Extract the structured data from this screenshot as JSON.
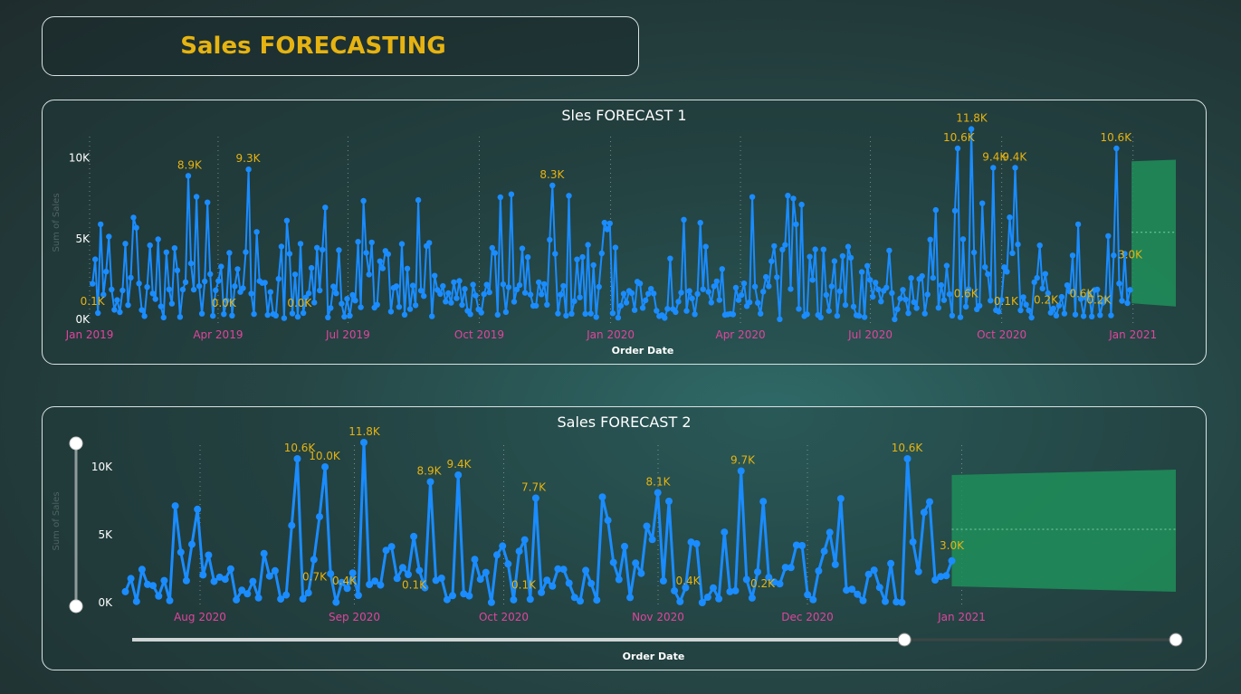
{
  "dashboard": {
    "title": "Sales FORECASTING"
  },
  "colors": {
    "line": "#1a8cff",
    "forecast": "#1f8f5a",
    "label": "#e6b311",
    "tick": "#e0459c"
  },
  "chart_data": [
    {
      "type": "line",
      "title": "Sles FORECAST 1",
      "xlabel": "Order Date",
      "ylabel": "Sum of Sales",
      "x_ticks": [
        "Jan 2019",
        "Apr 2019",
        "Jul 2019",
        "Oct 2019",
        "Jan 2020",
        "Apr 2020",
        "Jul 2020",
        "Oct 2020",
        "Jan 2021"
      ],
      "y_ticks": [
        "0K",
        "5K",
        "10K"
      ],
      "ylim": [
        0,
        12000
      ],
      "x_range": [
        "2019-01-01",
        "2021-01-31"
      ],
      "series": [
        {
          "seed": 7,
          "start": "2019-01-03",
          "end": "2020-12-30",
          "count": 380
        }
      ],
      "peaks": [
        {
          "x": "2019-03-12",
          "y": 8900
        },
        {
          "x": "2019-04-22",
          "y": 9300
        },
        {
          "x": "2019-11-21",
          "y": 8300
        },
        {
          "x": "2020-09-01",
          "y": 10600
        },
        {
          "x": "2020-09-10",
          "y": 11800
        },
        {
          "x": "2020-09-26",
          "y": 9400
        },
        {
          "x": "2020-10-10",
          "y": 9400
        },
        {
          "x": "2020-12-20",
          "y": 10600
        }
      ],
      "data_labels": [
        {
          "x": "2019-01-03",
          "y": 100,
          "text": "0.1K"
        },
        {
          "x": "2019-03-12",
          "y": 8900,
          "text": "8.9K"
        },
        {
          "x": "2019-04-22",
          "y": 9300,
          "text": "9.3K"
        },
        {
          "x": "2019-04-05",
          "y": 0,
          "text": "0.0K"
        },
        {
          "x": "2019-05-28",
          "y": 0,
          "text": "0.0K"
        },
        {
          "x": "2019-11-21",
          "y": 8300,
          "text": "8.3K"
        },
        {
          "x": "2020-09-01",
          "y": 10600,
          "text": "10.6K"
        },
        {
          "x": "2020-09-10",
          "y": 11800,
          "text": "11.8K"
        },
        {
          "x": "2020-09-26",
          "y": 9400,
          "text": "9.4K"
        },
        {
          "x": "2020-10-10",
          "y": 9400,
          "text": "9.4K"
        },
        {
          "x": "2020-09-06",
          "y": 600,
          "text": "0.6K"
        },
        {
          "x": "2020-10-04",
          "y": 100,
          "text": "0.1K"
        },
        {
          "x": "2020-11-01",
          "y": 200,
          "text": "0.2K"
        },
        {
          "x": "2020-11-26",
          "y": 600,
          "text": "0.6K"
        },
        {
          "x": "2020-12-08",
          "y": 200,
          "text": "0.2K"
        },
        {
          "x": "2020-12-20",
          "y": 10600,
          "text": "10.6K"
        },
        {
          "x": "2020-12-30",
          "y": 3000,
          "text": "3.0K"
        }
      ],
      "forecast": {
        "start": "2020-12-31",
        "end": "2021-01-31",
        "upper": [
          9800,
          9900
        ],
        "lower": [
          1000,
          800
        ],
        "center": [
          5400,
          5400
        ]
      }
    },
    {
      "type": "line",
      "title": "Sales FORECAST 2",
      "xlabel": "Order Date",
      "ylabel": "Sum of Sales",
      "x_ticks": [
        "Aug 2020",
        "Sep 2020",
        "Oct 2020",
        "Nov 2020",
        "Dec 2020",
        "Jan 2021"
      ],
      "y_ticks": [
        "0K",
        "5K",
        "10K"
      ],
      "ylim": [
        0,
        12000
      ],
      "x_range": [
        "2020-07-16",
        "2021-02-13"
      ],
      "series": [
        {
          "seed": 11,
          "start": "2020-07-17",
          "end": "2020-12-30",
          "count": 150
        }
      ],
      "peaks": [
        {
          "x": "2020-08-21",
          "y": 10600
        },
        {
          "x": "2020-08-26",
          "y": 10000
        },
        {
          "x": "2020-09-03",
          "y": 11800
        },
        {
          "x": "2020-09-16",
          "y": 8900
        },
        {
          "x": "2020-09-22",
          "y": 9400
        },
        {
          "x": "2020-10-07",
          "y": 7700
        },
        {
          "x": "2020-11-01",
          "y": 8100
        },
        {
          "x": "2020-11-18",
          "y": 9700
        },
        {
          "x": "2020-12-21",
          "y": 10600
        }
      ],
      "data_labels": [
        {
          "x": "2020-08-21",
          "y": 10600,
          "text": "10.6K"
        },
        {
          "x": "2020-08-26",
          "y": 10000,
          "text": "10.0K"
        },
        {
          "x": "2020-08-24",
          "y": 700,
          "text": "0.7K"
        },
        {
          "x": "2020-08-30",
          "y": 400,
          "text": "0.4K"
        },
        {
          "x": "2020-09-03",
          "y": 11800,
          "text": "11.8K"
        },
        {
          "x": "2020-09-16",
          "y": 8900,
          "text": "8.9K"
        },
        {
          "x": "2020-09-22",
          "y": 9400,
          "text": "9.4K"
        },
        {
          "x": "2020-09-13",
          "y": 100,
          "text": "0.1K"
        },
        {
          "x": "2020-10-07",
          "y": 7700,
          "text": "7.7K"
        },
        {
          "x": "2020-10-05",
          "y": 100,
          "text": "0.1K"
        },
        {
          "x": "2020-11-01",
          "y": 8100,
          "text": "8.1K"
        },
        {
          "x": "2020-11-07",
          "y": 400,
          "text": "0.4K"
        },
        {
          "x": "2020-11-18",
          "y": 9700,
          "text": "9.7K"
        },
        {
          "x": "2020-11-22",
          "y": 200,
          "text": "0.2K"
        },
        {
          "x": "2020-12-21",
          "y": 10600,
          "text": "10.6K"
        },
        {
          "x": "2020-12-30",
          "y": 3000,
          "text": "3.0K"
        }
      ],
      "forecast": {
        "start": "2020-12-30",
        "end": "2021-02-13",
        "upper": [
          9400,
          9800
        ],
        "lower": [
          1200,
          800
        ],
        "center": [
          5400,
          5400
        ]
      }
    }
  ],
  "slider2": {
    "x_start": 0.0,
    "x_end": 0.74
  }
}
